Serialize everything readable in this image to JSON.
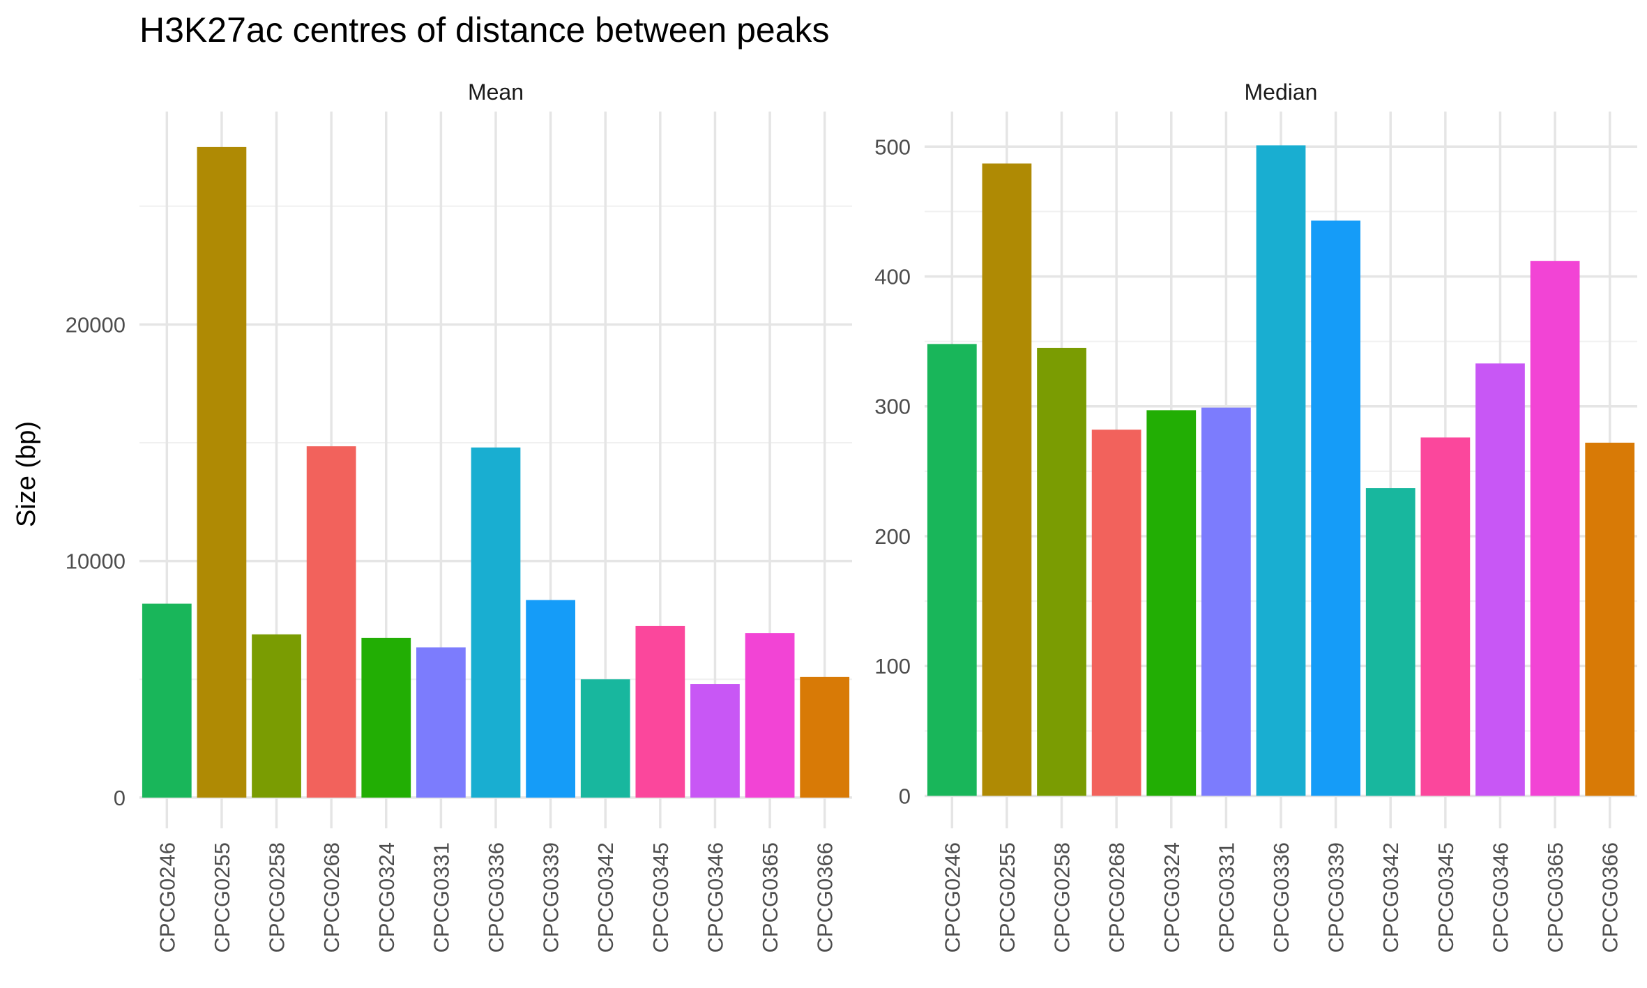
{
  "chart_data": {
    "type": "bar",
    "title": "H3K27ac centres of distance between peaks",
    "ylabel": "Size (bp)",
    "xlabel": "",
    "grid": true,
    "legend": "none",
    "categories": [
      "CPCG0246",
      "CPCG0255",
      "CPCG0258",
      "CPCG0268",
      "CPCG0324",
      "CPCG0331",
      "CPCG0336",
      "CPCG0339",
      "CPCG0342",
      "CPCG0345",
      "CPCG0346",
      "CPCG0365",
      "CPCG0366"
    ],
    "colors": [
      "#19B65A",
      "#AF8A04",
      "#7A9C02",
      "#F2625C",
      "#22AE04",
      "#7C7CFD",
      "#19AED1",
      "#159CF8",
      "#18B79E",
      "#FB479C",
      "#C857F5",
      "#F244D5",
      "#D87A06"
    ],
    "panels": [
      {
        "name": "Mean",
        "ylim": [
          -1300,
          29000
        ],
        "yticks": [
          0,
          10000,
          20000
        ],
        "yticklabels": [
          "0",
          "10000",
          "20000"
        ],
        "values": [
          8200,
          27500,
          6900,
          14850,
          6750,
          6350,
          14800,
          8350,
          5000,
          7250,
          4800,
          6950,
          5100
        ]
      },
      {
        "name": "Median",
        "ylim": [
          -25,
          527
        ],
        "yticks": [
          0,
          100,
          200,
          300,
          400,
          500
        ],
        "yticklabels": [
          "0",
          "100",
          "200",
          "300",
          "400",
          "500"
        ],
        "values": [
          348,
          487,
          345,
          282,
          297,
          299,
          501,
          443,
          237,
          276,
          333,
          412,
          272
        ]
      }
    ]
  }
}
